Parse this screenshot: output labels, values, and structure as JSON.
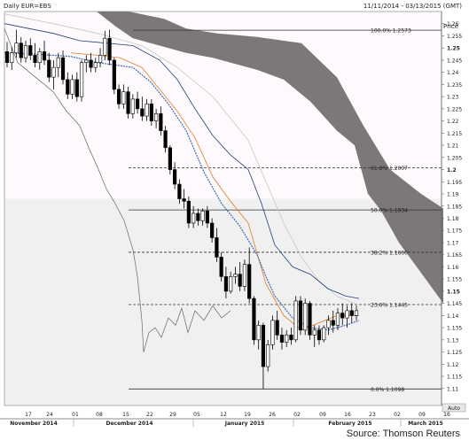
{
  "header": {
    "symbol": "Daily EUR=EBS",
    "date_range": "11/11/2014 - 03/13/2015 (GMT)",
    "axis_title": "Price",
    "auto_label": "Auto"
  },
  "source": "Source: Thomson Reuters",
  "colors": {
    "background_upper": "#fdf9fc",
    "background_lower": "#f0f0f0",
    "cloud": "#7c7779",
    "candle_up": "#ffffff",
    "candle_down": "#000000",
    "ma_fast": "#3f6cb0",
    "ma_slow": "#e08a3a",
    "kijun": "#1e3f78",
    "chikou": "#666666",
    "ma_long": "#c8c8c8"
  },
  "chart_data": {
    "type": "candlestick",
    "x_ticks": [
      "17",
      "24",
      "01",
      "08",
      "15",
      "22",
      "29",
      "05",
      "12",
      "19",
      "26",
      "02",
      "09",
      "16",
      "23",
      "02",
      "09",
      "16"
    ],
    "months": [
      "November 2014",
      "December 2014",
      "January 2015",
      "February 2015",
      "March 2015"
    ],
    "y_ticks": [
      "1.26",
      "1.255",
      "1.25",
      "1.245",
      "1.24",
      "1.235",
      "1.23",
      "1.225",
      "1.22",
      "1.215",
      "1.21",
      "1.205",
      "1.2",
      "1.195",
      "1.19",
      "1.185",
      "1.18",
      "1.175",
      "1.17",
      "1.165",
      "1.16",
      "1.155",
      "1.15",
      "1.145",
      "1.14",
      "1.135",
      "1.13",
      "1.125",
      "1.12",
      "1.115",
      "1.11"
    ],
    "ylim": [
      1.103,
      1.265
    ],
    "fibonacci": [
      {
        "label": "100.0% 1.2573",
        "value": 1.2573
      },
      {
        "label": "61.8% 1.2007",
        "value": 1.2007
      },
      {
        "label": "50.0% 1.1834",
        "value": 1.1834
      },
      {
        "label": "38.2% 1.1660",
        "value": 1.166
      },
      {
        "label": "23.6% 1.1445",
        "value": 1.1445
      },
      {
        "label": "0.0% 1.1098",
        "value": 1.1098
      }
    ],
    "candles": [
      {
        "o": 1.2485,
        "h": 1.2525,
        "l": 1.242,
        "c": 1.244
      },
      {
        "o": 1.244,
        "h": 1.2505,
        "l": 1.241,
        "c": 1.248
      },
      {
        "o": 1.248,
        "h": 1.2575,
        "l": 1.246,
        "c": 1.252
      },
      {
        "o": 1.252,
        "h": 1.2545,
        "l": 1.244,
        "c": 1.246
      },
      {
        "o": 1.246,
        "h": 1.253,
        "l": 1.244,
        "c": 1.251
      },
      {
        "o": 1.251,
        "h": 1.254,
        "l": 1.245,
        "c": 1.247
      },
      {
        "o": 1.247,
        "h": 1.252,
        "l": 1.242,
        "c": 1.244
      },
      {
        "o": 1.244,
        "h": 1.25,
        "l": 1.241,
        "c": 1.2485
      },
      {
        "o": 1.2485,
        "h": 1.253,
        "l": 1.243,
        "c": 1.245
      },
      {
        "o": 1.245,
        "h": 1.248,
        "l": 1.236,
        "c": 1.238
      },
      {
        "o": 1.238,
        "h": 1.245,
        "l": 1.233,
        "c": 1.242
      },
      {
        "o": 1.242,
        "h": 1.248,
        "l": 1.238,
        "c": 1.246
      },
      {
        "o": 1.246,
        "h": 1.249,
        "l": 1.235,
        "c": 1.237
      },
      {
        "o": 1.237,
        "h": 1.24,
        "l": 1.229,
        "c": 1.231
      },
      {
        "o": 1.231,
        "h": 1.239,
        "l": 1.229,
        "c": 1.237
      },
      {
        "o": 1.237,
        "h": 1.24,
        "l": 1.228,
        "c": 1.23
      },
      {
        "o": 1.23,
        "h": 1.245,
        "l": 1.228,
        "c": 1.244
      },
      {
        "o": 1.244,
        "h": 1.247,
        "l": 1.24,
        "c": 1.245
      },
      {
        "o": 1.245,
        "h": 1.248,
        "l": 1.24,
        "c": 1.242
      },
      {
        "o": 1.242,
        "h": 1.246,
        "l": 1.24,
        "c": 1.244
      },
      {
        "o": 1.244,
        "h": 1.25,
        "l": 1.242,
        "c": 1.247
      },
      {
        "o": 1.247,
        "h": 1.257,
        "l": 1.245,
        "c": 1.254
      },
      {
        "o": 1.254,
        "h": 1.2575,
        "l": 1.243,
        "c": 1.245
      },
      {
        "o": 1.245,
        "h": 1.246,
        "l": 1.231,
        "c": 1.233
      },
      {
        "o": 1.233,
        "h": 1.235,
        "l": 1.225,
        "c": 1.227
      },
      {
        "o": 1.227,
        "h": 1.235,
        "l": 1.225,
        "c": 1.232
      },
      {
        "o": 1.232,
        "h": 1.234,
        "l": 1.221,
        "c": 1.223
      },
      {
        "o": 1.223,
        "h": 1.231,
        "l": 1.221,
        "c": 1.229
      },
      {
        "o": 1.229,
        "h": 1.232,
        "l": 1.223,
        "c": 1.225
      },
      {
        "o": 1.225,
        "h": 1.23,
        "l": 1.22,
        "c": 1.222
      },
      {
        "o": 1.222,
        "h": 1.229,
        "l": 1.22,
        "c": 1.227
      },
      {
        "o": 1.227,
        "h": 1.229,
        "l": 1.218,
        "c": 1.22
      },
      {
        "o": 1.22,
        "h": 1.225,
        "l": 1.217,
        "c": 1.223
      },
      {
        "o": 1.223,
        "h": 1.226,
        "l": 1.214,
        "c": 1.216
      },
      {
        "o": 1.216,
        "h": 1.218,
        "l": 1.207,
        "c": 1.209
      },
      {
        "o": 1.209,
        "h": 1.21,
        "l": 1.198,
        "c": 1.2
      },
      {
        "o": 1.2,
        "h": 1.203,
        "l": 1.192,
        "c": 1.194
      },
      {
        "o": 1.194,
        "h": 1.196,
        "l": 1.186,
        "c": 1.188
      },
      {
        "o": 1.188,
        "h": 1.192,
        "l": 1.184,
        "c": 1.187
      },
      {
        "o": 1.187,
        "h": 1.189,
        "l": 1.176,
        "c": 1.178
      },
      {
        "o": 1.178,
        "h": 1.185,
        "l": 1.176,
        "c": 1.182
      },
      {
        "o": 1.182,
        "h": 1.184,
        "l": 1.177,
        "c": 1.179
      },
      {
        "o": 1.179,
        "h": 1.184,
        "l": 1.177,
        "c": 1.183
      },
      {
        "o": 1.183,
        "h": 1.185,
        "l": 1.176,
        "c": 1.178
      },
      {
        "o": 1.178,
        "h": 1.18,
        "l": 1.17,
        "c": 1.172
      },
      {
        "o": 1.172,
        "h": 1.176,
        "l": 1.162,
        "c": 1.164
      },
      {
        "o": 1.164,
        "h": 1.166,
        "l": 1.154,
        "c": 1.156
      },
      {
        "o": 1.156,
        "h": 1.16,
        "l": 1.147,
        "c": 1.15
      },
      {
        "o": 1.15,
        "h": 1.158,
        "l": 1.149,
        "c": 1.156
      },
      {
        "o": 1.156,
        "h": 1.16,
        "l": 1.153,
        "c": 1.157
      },
      {
        "o": 1.157,
        "h": 1.162,
        "l": 1.15,
        "c": 1.152
      },
      {
        "o": 1.152,
        "h": 1.163,
        "l": 1.15,
        "c": 1.161
      },
      {
        "o": 1.161,
        "h": 1.168,
        "l": 1.145,
        "c": 1.147
      },
      {
        "o": 1.147,
        "h": 1.148,
        "l": 1.128,
        "c": 1.13
      },
      {
        "o": 1.13,
        "h": 1.138,
        "l": 1.126,
        "c": 1.136
      },
      {
        "o": 1.136,
        "h": 1.137,
        "l": 1.1098,
        "c": 1.119
      },
      {
        "o": 1.119,
        "h": 1.13,
        "l": 1.117,
        "c": 1.128
      },
      {
        "o": 1.128,
        "h": 1.14,
        "l": 1.126,
        "c": 1.138
      },
      {
        "o": 1.138,
        "h": 1.142,
        "l": 1.13,
        "c": 1.132
      },
      {
        "o": 1.132,
        "h": 1.135,
        "l": 1.126,
        "c": 1.129
      },
      {
        "o": 1.129,
        "h": 1.134,
        "l": 1.127,
        "c": 1.132
      },
      {
        "o": 1.132,
        "h": 1.135,
        "l": 1.128,
        "c": 1.13
      },
      {
        "o": 1.13,
        "h": 1.148,
        "l": 1.129,
        "c": 1.146
      },
      {
        "o": 1.146,
        "h": 1.148,
        "l": 1.132,
        "c": 1.134
      },
      {
        "o": 1.134,
        "h": 1.147,
        "l": 1.132,
        "c": 1.145
      },
      {
        "o": 1.145,
        "h": 1.146,
        "l": 1.13,
        "c": 1.132
      },
      {
        "o": 1.132,
        "h": 1.136,
        "l": 1.127,
        "c": 1.134
      },
      {
        "o": 1.134,
        "h": 1.136,
        "l": 1.128,
        "c": 1.13
      },
      {
        "o": 1.13,
        "h": 1.136,
        "l": 1.129,
        "c": 1.135
      },
      {
        "o": 1.135,
        "h": 1.14,
        "l": 1.132,
        "c": 1.138
      },
      {
        "o": 1.138,
        "h": 1.142,
        "l": 1.133,
        "c": 1.136
      },
      {
        "o": 1.136,
        "h": 1.143,
        "l": 1.134,
        "c": 1.141
      },
      {
        "o": 1.141,
        "h": 1.145,
        "l": 1.136,
        "c": 1.139
      },
      {
        "o": 1.139,
        "h": 1.144,
        "l": 1.135,
        "c": 1.142
      },
      {
        "o": 1.142,
        "h": 1.145,
        "l": 1.137,
        "c": 1.14
      },
      {
        "o": 1.14,
        "h": 1.144,
        "l": 1.138,
        "c": 1.142
      }
    ],
    "cloud_top": [
      [
        109,
        1.265
      ],
      [
        145,
        1.265
      ],
      [
        185,
        1.262
      ],
      [
        210,
        1.258
      ],
      [
        245,
        1.256
      ],
      [
        290,
        1.2545
      ],
      [
        340,
        1.252
      ],
      [
        380,
        1.238
      ],
      [
        410,
        1.218
      ],
      [
        440,
        1.2
      ],
      [
        475,
        1.19
      ],
      [
        500,
        1.184
      ]
    ],
    "cloud_bottom": [
      [
        109,
        1.265
      ],
      [
        130,
        1.259
      ],
      [
        150,
        1.254
      ],
      [
        180,
        1.251
      ],
      [
        210,
        1.248
      ],
      [
        240,
        1.246
      ],
      [
        260,
        1.244
      ],
      [
        290,
        1.241
      ],
      [
        320,
        1.237
      ],
      [
        350,
        1.228
      ],
      [
        380,
        1.216
      ],
      [
        400,
        1.21
      ],
      [
        415,
        1.19
      ],
      [
        430,
        1.183
      ],
      [
        450,
        1.17
      ],
      [
        470,
        1.16
      ],
      [
        490,
        1.15
      ],
      [
        500,
        1.145
      ]
    ],
    "ma_fast": [
      [
        5,
        1.248
      ],
      [
        40,
        1.2475
      ],
      [
        80,
        1.2465
      ],
      [
        110,
        1.244
      ],
      [
        130,
        1.243
      ],
      [
        150,
        1.242
      ],
      [
        170,
        1.236
      ],
      [
        190,
        1.227
      ],
      [
        210,
        1.216
      ],
      [
        230,
        1.199
      ],
      [
        250,
        1.186
      ],
      [
        270,
        1.177
      ],
      [
        290,
        1.165
      ],
      [
        300,
        1.156
      ],
      [
        310,
        1.148
      ],
      [
        330,
        1.139
      ],
      [
        350,
        1.135
      ],
      [
        370,
        1.134
      ],
      [
        390,
        1.136
      ],
      [
        405,
        1.138
      ]
    ],
    "ma_slow": [
      [
        80,
        1.248
      ],
      [
        110,
        1.247
      ],
      [
        135,
        1.246
      ],
      [
        160,
        1.242
      ],
      [
        180,
        1.233
      ],
      [
        200,
        1.224
      ],
      [
        220,
        1.213
      ],
      [
        240,
        1.197
      ],
      [
        260,
        1.187
      ],
      [
        280,
        1.178
      ],
      [
        300,
        1.153
      ],
      [
        320,
        1.14
      ],
      [
        340,
        1.134
      ],
      [
        360,
        1.137
      ],
      [
        380,
        1.14
      ],
      [
        405,
        1.14
      ]
    ],
    "kijun": [
      [
        5,
        1.26
      ],
      [
        60,
        1.256
      ],
      [
        90,
        1.253
      ],
      [
        120,
        1.252
      ],
      [
        150,
        1.251
      ],
      [
        180,
        1.245
      ],
      [
        200,
        1.237
      ],
      [
        220,
        1.225
      ],
      [
        240,
        1.214
      ],
      [
        260,
        1.206
      ],
      [
        280,
        1.2
      ],
      [
        295,
        1.186
      ],
      [
        310,
        1.169
      ],
      [
        330,
        1.16
      ],
      [
        350,
        1.157
      ],
      [
        370,
        1.151
      ],
      [
        390,
        1.148
      ],
      [
        405,
        1.147
      ]
    ],
    "ma_long": [
      [
        5,
        1.264
      ],
      [
        60,
        1.26
      ],
      [
        110,
        1.256
      ],
      [
        160,
        1.251
      ],
      [
        200,
        1.242
      ],
      [
        240,
        1.23
      ],
      [
        280,
        1.212
      ],
      [
        300,
        1.195
      ],
      [
        320,
        1.178
      ],
      [
        340,
        1.164
      ],
      [
        360,
        1.154
      ],
      [
        380,
        1.148
      ],
      [
        400,
        1.145
      ]
    ],
    "chikou": [
      [
        5,
        1.258
      ],
      [
        20,
        1.244
      ],
      [
        40,
        1.238
      ],
      [
        60,
        1.232
      ],
      [
        75,
        1.224
      ],
      [
        90,
        1.218
      ],
      [
        100,
        1.209
      ],
      [
        110,
        1.201
      ],
      [
        120,
        1.192
      ],
      [
        130,
        1.186
      ],
      [
        140,
        1.179
      ],
      [
        150,
        1.167
      ],
      [
        155,
        1.156
      ],
      [
        160,
        1.138
      ],
      [
        162,
        1.125
      ],
      [
        168,
        1.133
      ],
      [
        175,
        1.135
      ],
      [
        182,
        1.131
      ],
      [
        190,
        1.139
      ],
      [
        198,
        1.136
      ],
      [
        205,
        1.143
      ],
      [
        212,
        1.133
      ],
      [
        220,
        1.142
      ],
      [
        230,
        1.138
      ],
      [
        240,
        1.144
      ],
      [
        250,
        1.139
      ],
      [
        260,
        1.142
      ]
    ]
  }
}
